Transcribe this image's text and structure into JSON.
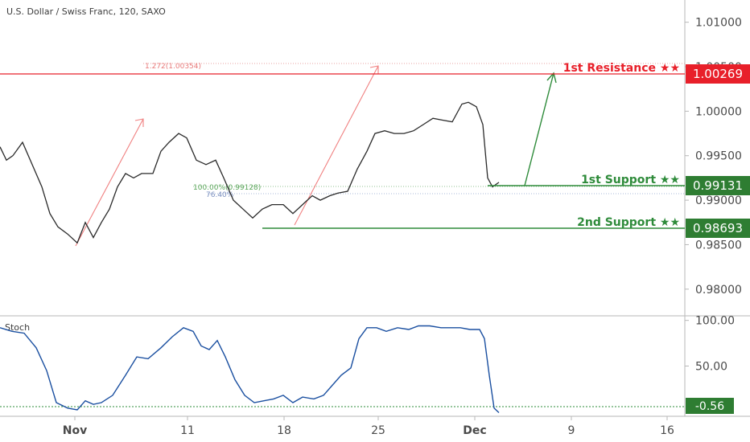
{
  "header": {
    "symbol_title": "U.S. Dollar / Swiss Franc, 120, SAXO"
  },
  "chart_data": {
    "type": "line",
    "title": "U.S. Dollar / Swiss Franc, 120, SAXO",
    "main_panel": {
      "y_ticks": [
        "1.01000",
        "1.00500",
        "1.00000",
        "0.99500",
        "0.99000",
        "0.98500",
        "0.98000"
      ],
      "y_range": [
        0.977,
        1.0125
      ],
      "price_series_approx": [
        [
          0,
          0.996
        ],
        [
          8,
          0.9945
        ],
        [
          16,
          0.995
        ],
        [
          28,
          0.9965
        ],
        [
          40,
          0.994
        ],
        [
          52,
          0.9915
        ],
        [
          62,
          0.9885
        ],
        [
          72,
          0.987
        ],
        [
          84,
          0.9862
        ],
        [
          96,
          0.9852
        ],
        [
          106,
          0.9875
        ],
        [
          116,
          0.9858
        ],
        [
          126,
          0.9875
        ],
        [
          136,
          0.989
        ],
        [
          146,
          0.9915
        ],
        [
          156,
          0.993
        ],
        [
          166,
          0.9925
        ],
        [
          176,
          0.993
        ],
        [
          190,
          0.993
        ],
        [
          200,
          0.9955
        ],
        [
          210,
          0.9965
        ],
        [
          222,
          0.9975
        ],
        [
          232,
          0.997
        ],
        [
          244,
          0.9945
        ],
        [
          256,
          0.994
        ],
        [
          268,
          0.9945
        ],
        [
          278,
          0.9925
        ],
        [
          290,
          0.99
        ],
        [
          302,
          0.989
        ],
        [
          314,
          0.988
        ],
        [
          326,
          0.989
        ],
        [
          338,
          0.9895
        ],
        [
          352,
          0.9895
        ],
        [
          364,
          0.9885
        ],
        [
          376,
          0.9895
        ],
        [
          388,
          0.9905
        ],
        [
          398,
          0.99
        ],
        [
          410,
          0.9905
        ],
        [
          420,
          0.9908
        ],
        [
          432,
          0.991
        ],
        [
          444,
          0.9935
        ],
        [
          456,
          0.9955
        ],
        [
          466,
          0.9975
        ],
        [
          478,
          0.9978
        ],
        [
          490,
          0.9975
        ],
        [
          502,
          0.9975
        ],
        [
          514,
          0.9978
        ],
        [
          526,
          0.9985
        ],
        [
          538,
          0.9992
        ],
        [
          550,
          0.999
        ],
        [
          562,
          0.9988
        ],
        [
          574,
          1.0008
        ],
        [
          582,
          1.001
        ],
        [
          592,
          1.0005
        ],
        [
          600,
          0.9985
        ],
        [
          606,
          0.9925
        ],
        [
          612,
          0.9915
        ],
        [
          620,
          0.992
        ]
      ],
      "levels": [
        {
          "name": "1st Resistance ★★",
          "value": "1.00269",
          "color": "#e8202a"
        },
        {
          "name": "1st Support ★★",
          "value": "0.99131",
          "color": "#2e8b3a"
        },
        {
          "name": "2nd Support ★★",
          "value": "0.98693",
          "color": "#2e8b3a"
        }
      ],
      "fib_labels": {
        "ext": "1.272(1.00354)",
        "base": "100.00%(0.99128)",
        "retr": "76.40%"
      }
    },
    "stoch_panel": {
      "label": "Stoch",
      "y_ticks": [
        "100.00",
        "50.00"
      ],
      "y_range": [
        -5,
        105
      ],
      "current_value": "-0.56",
      "values_approx": [
        [
          0,
          92
        ],
        [
          15,
          88
        ],
        [
          30,
          86
        ],
        [
          45,
          70
        ],
        [
          58,
          45
        ],
        [
          70,
          10
        ],
        [
          84,
          4
        ],
        [
          96,
          2
        ],
        [
          106,
          12
        ],
        [
          116,
          8
        ],
        [
          126,
          10
        ],
        [
          140,
          18
        ],
        [
          156,
          40
        ],
        [
          170,
          60
        ],
        [
          184,
          58
        ],
        [
          200,
          70
        ],
        [
          214,
          82
        ],
        [
          228,
          92
        ],
        [
          240,
          88
        ],
        [
          250,
          72
        ],
        [
          260,
          68
        ],
        [
          270,
          78
        ],
        [
          280,
          60
        ],
        [
          292,
          35
        ],
        [
          304,
          18
        ],
        [
          316,
          10
        ],
        [
          328,
          12
        ],
        [
          340,
          14
        ],
        [
          352,
          18
        ],
        [
          364,
          10
        ],
        [
          376,
          16
        ],
        [
          390,
          14
        ],
        [
          402,
          18
        ],
        [
          412,
          28
        ],
        [
          424,
          40
        ],
        [
          436,
          48
        ],
        [
          446,
          80
        ],
        [
          456,
          92
        ],
        [
          468,
          92
        ],
        [
          480,
          88
        ],
        [
          494,
          92
        ],
        [
          508,
          90
        ],
        [
          520,
          94
        ],
        [
          534,
          94
        ],
        [
          548,
          92
        ],
        [
          560,
          92
        ],
        [
          572,
          92
        ],
        [
          584,
          90
        ],
        [
          596,
          90
        ],
        [
          602,
          80
        ],
        [
          608,
          40
        ],
        [
          614,
          4
        ],
        [
          620,
          -1
        ]
      ]
    },
    "x_ticks": [
      "Nov",
      "11",
      "18",
      "25",
      "Dec",
      "9",
      "16"
    ]
  }
}
